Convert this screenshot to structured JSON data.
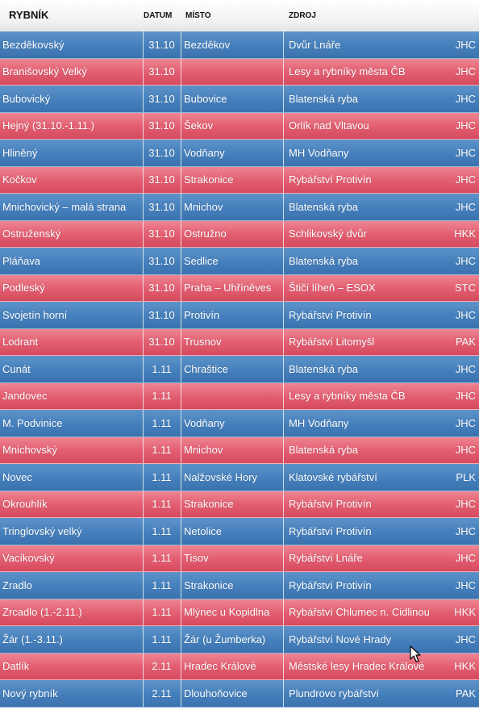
{
  "header": {
    "rybnik": "RYBNÍK",
    "datum": "DATUM",
    "misto": "MÍSTO",
    "zdroj": "ZDROJ"
  },
  "colors": {
    "blue_row": "#4781bd",
    "red_row": "#e25f71"
  },
  "rows": [
    {
      "name": "Bezděkovský",
      "date": "31.10",
      "place": "Bezděkov",
      "source": "Dvůr Lnáře",
      "code": "JHC",
      "color": "blue"
    },
    {
      "name": "Branišovský Velký",
      "date": "31.10",
      "place": "",
      "source": "Lesy a rybníky města ČB",
      "code": "JHC",
      "color": "red"
    },
    {
      "name": "Bubovický",
      "date": "31.10",
      "place": "Bubovice",
      "source": "Blatenská ryba",
      "code": "JHC",
      "color": "blue"
    },
    {
      "name": "Hejný (31.10.-1.11.)",
      "date": "31.10",
      "place": "Šekov",
      "source": "Orlík nad Vltavou",
      "code": "JHC",
      "color": "red"
    },
    {
      "name": "Hliněný",
      "date": "31.10",
      "place": "Vodňany",
      "source": "MH Vodňany",
      "code": "JHC",
      "color": "blue"
    },
    {
      "name": "Kočkov",
      "date": "31.10",
      "place": "Strakonice",
      "source": "Rybářství Protivín",
      "code": "JHC",
      "color": "red"
    },
    {
      "name": "Mnichovický – malá strana",
      "date": "31.10",
      "place": "Mnichov",
      "source": "Blatenská ryba",
      "code": "JHC",
      "color": "blue"
    },
    {
      "name": "Ostruženský",
      "date": "31.10",
      "place": "Ostružno",
      "source": "Schlikovský dvůr",
      "code": "HKK",
      "color": "red"
    },
    {
      "name": "Pláňava",
      "date": "31.10",
      "place": "Sedlice",
      "source": "Blatenská ryba",
      "code": "JHC",
      "color": "blue"
    },
    {
      "name": "Podleský",
      "date": "31.10",
      "place": "Praha – Uhříněves",
      "source": "Štičí líheň – ESOX",
      "code": "STC",
      "color": "red"
    },
    {
      "name": "Svojetín horní",
      "date": "31.10",
      "place": "Protivín",
      "source": "Rybářství Protivín",
      "code": "JHC",
      "color": "blue"
    },
    {
      "name": "Lodrant",
      "date": "31.10",
      "place": "Trusnov",
      "source": "Rybářství Litomyšl",
      "code": "PAK",
      "color": "red"
    },
    {
      "name": "Cunát",
      "date": "1.11",
      "place": "Chraštice",
      "source": "Blatenská ryba",
      "code": "JHC",
      "color": "blue"
    },
    {
      "name": "Jandovec",
      "date": "1.11",
      "place": "",
      "source": "Lesy a rybníky města ČB",
      "code": "JHC",
      "color": "red"
    },
    {
      "name": "M. Podvinice",
      "date": "1.11",
      "place": "Vodňany",
      "source": "MH Vodňany",
      "code": "JHC",
      "color": "blue"
    },
    {
      "name": "Mnichovský",
      "date": "1.11",
      "place": "Mnichov",
      "source": "Blatenská ryba",
      "code": "JHC",
      "color": "red"
    },
    {
      "name": "Novec",
      "date": "1.11",
      "place": "Nalžovské Hory",
      "source": "Klatovské rybářství",
      "code": "PLK",
      "color": "blue"
    },
    {
      "name": "Okrouhlík",
      "date": "1.11",
      "place": "Strakonice",
      "source": "Rybářství Protivín",
      "code": "JHC",
      "color": "red"
    },
    {
      "name": "Tringlovský velký",
      "date": "1.11",
      "place": "Netolice",
      "source": "Rybářství Protivín",
      "code": "JHC",
      "color": "blue"
    },
    {
      "name": "Vacíkovský",
      "date": "1.11",
      "place": "Tisov",
      "source": "Rybářství Lnáře",
      "code": "JHC",
      "color": "red"
    },
    {
      "name": "Zradlo",
      "date": "1.11",
      "place": "Strakonice",
      "source": "Rybářství Protivín",
      "code": "JHC",
      "color": "blue"
    },
    {
      "name": "Zrcadlo (1.-2.11.)",
      "date": "1.11",
      "place": "Mlýnec u Kopidlna",
      "source": "Rybářství Chlumec n. Cidlinou",
      "code": "HKK",
      "color": "red"
    },
    {
      "name": "Žár (1.-3.11.)",
      "date": "1.11",
      "place": "Žár (u Žumberka)",
      "source": "Rybářství Nové Hrady",
      "code": "JHC",
      "color": "blue"
    },
    {
      "name": "Datlík",
      "date": "2.11",
      "place": "Hradec Králové",
      "source": "Městské lesy Hradec Králové",
      "code": "HKK",
      "color": "red"
    },
    {
      "name": "Nový rybník",
      "date": "2.11",
      "place": "Dlouhoňovice",
      "source": "Plundrovo rybářství",
      "code": "PAK",
      "color": "blue"
    }
  ]
}
